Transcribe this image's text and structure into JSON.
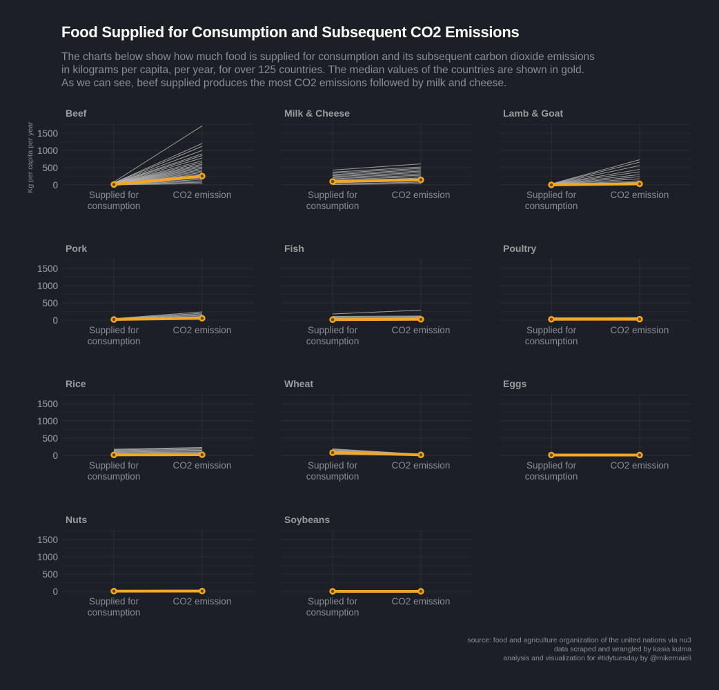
{
  "title": "Food Supplied for Consumption and Subsequent CO2 Emissions",
  "subtitle": [
    "The charts below show how much food is supplied for consumption and its subsequent carbon dioxide emissions",
    "in kilograms per capita, per year, for over 125 countries. The median values of the countries are shown in gold.",
    "As we can see, beef supplied produces the most CO2 emissions followed by milk and cheese."
  ],
  "caption": [
    "source: food and agriculture organization of the united nations via nu3",
    "data scraped and wrangled by kasia kulma",
    "analysis and visualization for #tidytuesday by @mikemaieli"
  ],
  "colors": {
    "background": "#1c1f25",
    "grid": "#2c3038",
    "country_line": "#b5b5b5",
    "median": "#f5a623",
    "text": "#8a8d94",
    "facet_title": "#9a9ca2"
  },
  "chart_data": {
    "type": "line",
    "ylabel": "Kg per capita per year",
    "xlabel": "",
    "categories": [
      "Supplied for\nconsumption",
      "CO2 emission"
    ],
    "ylim": [
      0,
      1800
    ],
    "yticks": [
      0,
      500,
      1000,
      1500
    ],
    "grid": true,
    "panels": [
      {
        "title": "Beef",
        "median": [
          13,
          255
        ],
        "countries": [
          [
            85,
            1712
          ],
          [
            60,
            1201
          ],
          [
            55,
            1120
          ],
          [
            50,
            1000
          ],
          [
            45,
            900
          ],
          [
            40,
            850
          ],
          [
            38,
            780
          ],
          [
            35,
            700
          ],
          [
            32,
            650
          ],
          [
            30,
            600
          ],
          [
            28,
            560
          ],
          [
            26,
            520
          ],
          [
            24,
            480
          ],
          [
            22,
            440
          ],
          [
            20,
            400
          ],
          [
            18,
            360
          ],
          [
            16,
            320
          ],
          [
            14,
            280
          ],
          [
            12,
            240
          ],
          [
            10,
            200
          ],
          [
            8,
            160
          ],
          [
            6,
            120
          ],
          [
            4,
            80
          ],
          [
            2,
            40
          ]
        ]
      },
      {
        "title": "Milk & Cheese",
        "median": [
          100,
          145
        ],
        "countries": [
          [
            430,
            610
          ],
          [
            370,
            520
          ],
          [
            340,
            480
          ],
          [
            300,
            440
          ],
          [
            270,
            400
          ],
          [
            240,
            360
          ],
          [
            210,
            320
          ],
          [
            180,
            280
          ],
          [
            150,
            240
          ],
          [
            120,
            200
          ],
          [
            90,
            160
          ],
          [
            60,
            120
          ],
          [
            30,
            80
          ],
          [
            10,
            40
          ]
        ]
      },
      {
        "title": "Lamb & Goat",
        "median": [
          2,
          30
        ],
        "countries": [
          [
            30,
            730
          ],
          [
            25,
            660
          ],
          [
            20,
            560
          ],
          [
            18,
            450
          ],
          [
            15,
            380
          ],
          [
            12,
            300
          ],
          [
            10,
            240
          ],
          [
            8,
            180
          ],
          [
            6,
            120
          ],
          [
            4,
            80
          ],
          [
            2,
            40
          ]
        ]
      },
      {
        "title": "Pork",
        "median": [
          20,
          55
        ],
        "countries": [
          [
            45,
            240
          ],
          [
            40,
            200
          ],
          [
            35,
            170
          ],
          [
            30,
            140
          ],
          [
            25,
            110
          ],
          [
            20,
            90
          ],
          [
            15,
            70
          ],
          [
            10,
            50
          ],
          [
            5,
            30
          ]
        ]
      },
      {
        "title": "Fish",
        "median": [
          15,
          25
        ],
        "countries": [
          [
            180,
            290
          ],
          [
            110,
            120
          ],
          [
            90,
            100
          ],
          [
            70,
            80
          ],
          [
            50,
            60
          ],
          [
            30,
            40
          ],
          [
            15,
            20
          ]
        ]
      },
      {
        "title": "Poultry",
        "median": [
          25,
          28
        ],
        "countries": [
          [
            70,
            75
          ],
          [
            55,
            58
          ],
          [
            45,
            48
          ],
          [
            35,
            38
          ],
          [
            25,
            28
          ],
          [
            15,
            18
          ],
          [
            5,
            6
          ]
        ]
      },
      {
        "title": "Rice",
        "median": [
          15,
          20
        ],
        "countries": [
          [
            180,
            230
          ],
          [
            160,
            210
          ],
          [
            140,
            180
          ],
          [
            120,
            150
          ],
          [
            100,
            130
          ],
          [
            80,
            100
          ],
          [
            60,
            80
          ],
          [
            40,
            50
          ],
          [
            20,
            25
          ]
        ]
      },
      {
        "title": "Wheat",
        "median": [
          80,
          15
        ],
        "countries": [
          [
            190,
            35
          ],
          [
            170,
            30
          ],
          [
            150,
            28
          ],
          [
            130,
            25
          ],
          [
            110,
            20
          ],
          [
            90,
            17
          ],
          [
            70,
            13
          ],
          [
            50,
            10
          ],
          [
            30,
            6
          ]
        ]
      },
      {
        "title": "Eggs",
        "median": [
          10,
          9
        ],
        "countries": [
          [
            30,
            28
          ],
          [
            25,
            23
          ],
          [
            20,
            18
          ],
          [
            15,
            14
          ],
          [
            10,
            9
          ],
          [
            5,
            5
          ]
        ]
      },
      {
        "title": "Nuts",
        "median": [
          5,
          8
        ],
        "countries": [
          [
            20,
            35
          ],
          [
            15,
            25
          ],
          [
            10,
            15
          ],
          [
            5,
            8
          ]
        ]
      },
      {
        "title": "Soybeans",
        "median": [
          1,
          0.5
        ],
        "countries": [
          [
            15,
            7
          ],
          [
            8,
            4
          ],
          [
            4,
            2
          ],
          [
            1,
            0.5
          ]
        ]
      }
    ]
  }
}
